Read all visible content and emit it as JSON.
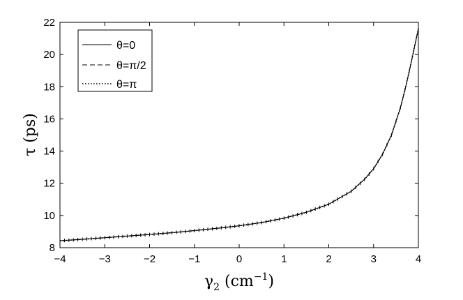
{
  "chart_data": {
    "type": "line",
    "xlabel": "γ",
    "xlabel_sub": "2",
    "xlabel_unit_open": " (cm",
    "xlabel_unit_sup": "−1",
    "xlabel_unit_close": ")",
    "ylabel": "τ (ps)",
    "xlim": [
      -4,
      4
    ],
    "ylim": [
      8,
      22
    ],
    "x_ticks": [
      -4,
      -3,
      -2,
      -1,
      0,
      1,
      2,
      3,
      4
    ],
    "x_tick_labels": [
      "−4",
      "−3",
      "−2",
      "−1",
      "0",
      "1",
      "2",
      "3",
      "4"
    ],
    "y_ticks": [
      8,
      10,
      12,
      14,
      16,
      18,
      20,
      22
    ],
    "y_tick_labels": [
      "8",
      "10",
      "12",
      "14",
      "16",
      "18",
      "20",
      "22"
    ],
    "grid": false,
    "legend_position": "top-left",
    "x": [
      -4.0,
      -3.5,
      -3.0,
      -2.5,
      -2.0,
      -1.5,
      -1.0,
      -0.5,
      0.0,
      0.5,
      1.0,
      1.5,
      2.0,
      2.5,
      2.8,
      3.0,
      3.2,
      3.4,
      3.6,
      3.7,
      3.8,
      3.9,
      4.0
    ],
    "series": [
      {
        "name": "θ=0",
        "style": "solid",
        "values": [
          8.43,
          8.52,
          8.62,
          8.72,
          8.82,
          8.93,
          9.06,
          9.2,
          9.36,
          9.56,
          9.83,
          10.2,
          10.7,
          11.5,
          12.25,
          12.9,
          13.8,
          15.0,
          16.7,
          17.8,
          19.0,
          20.3,
          21.6
        ]
      },
      {
        "name": "θ=π/2",
        "style": "dashed",
        "values": [
          8.43,
          8.52,
          8.62,
          8.72,
          8.82,
          8.93,
          9.06,
          9.2,
          9.36,
          9.56,
          9.83,
          10.2,
          10.7,
          11.5,
          12.25,
          12.9,
          13.8,
          15.0,
          16.7,
          17.8,
          19.0,
          20.3,
          21.6
        ]
      },
      {
        "name": "θ=π",
        "style": "dotted",
        "values": [
          8.43,
          8.52,
          8.62,
          8.72,
          8.82,
          8.93,
          9.06,
          9.2,
          9.36,
          9.56,
          9.83,
          10.2,
          10.7,
          11.5,
          12.25,
          12.9,
          13.8,
          15.0,
          16.7,
          17.8,
          19.0,
          20.3,
          21.6
        ]
      }
    ]
  }
}
